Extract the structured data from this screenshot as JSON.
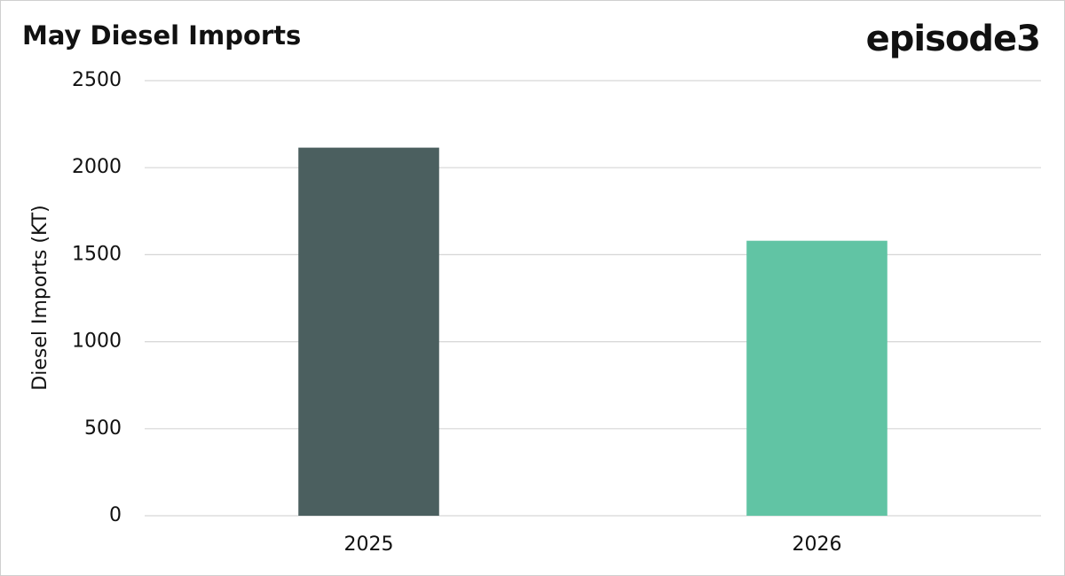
{
  "chart_data": {
    "type": "bar",
    "title": "May Diesel Imports",
    "brand": "episode3",
    "y_label": "Diesel Imports (KT)",
    "categories": [
      "2025",
      "2026"
    ],
    "values": [
      2115,
      1580
    ],
    "colors": [
      "#4b5f5f",
      "#61c4a4"
    ],
    "ylim": [
      0,
      2500
    ],
    "yticks": [
      0,
      500,
      1000,
      1500,
      2000,
      2500
    ],
    "grid": true
  }
}
